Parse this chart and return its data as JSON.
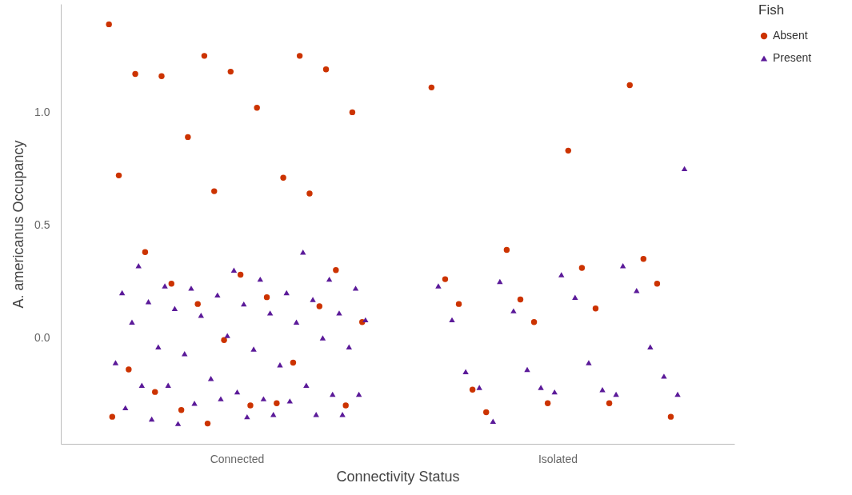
{
  "chart_data": {
    "type": "scatter",
    "xlabel": "Connectivity Status",
    "ylabel": "A. americanus Occupancy",
    "legend_title": "Fish",
    "legend": "right",
    "grid": false,
    "categories": [
      "Connected",
      "Isolated"
    ],
    "ylim": [
      -0.47,
      1.48
    ],
    "yticks": [
      {
        "value": 0,
        "label": "0.0"
      },
      {
        "value": 0.5,
        "label": "0.5"
      },
      {
        "value": 1,
        "label": "1.0"
      }
    ],
    "series": [
      {
        "name": "Absent",
        "color": "#cc3300",
        "marker": "circle",
        "x": [
          "Connected",
          "Connected",
          "Connected",
          "Connected",
          "Connected",
          "Connected",
          "Connected",
          "Connected",
          "Connected",
          "Connected",
          "Connected",
          "Connected",
          "Connected",
          "Connected",
          "Connected",
          "Connected",
          "Connected",
          "Connected",
          "Connected",
          "Connected",
          "Connected",
          "Connected",
          "Connected",
          "Connected",
          "Connected",
          "Connected",
          "Connected",
          "Connected",
          "Connected",
          "Connected",
          "Connected",
          "Connected",
          "Isolated",
          "Isolated",
          "Isolated",
          "Isolated",
          "Isolated",
          "Isolated",
          "Isolated",
          "Isolated",
          "Isolated",
          "Isolated",
          "Isolated",
          "Isolated",
          "Isolated",
          "Isolated",
          "Isolated",
          "Isolated",
          "Isolated"
        ],
        "values": [
          1.39,
          1.25,
          1.25,
          1.17,
          1.18,
          1.19,
          1.16,
          1.02,
          1.0,
          0.89,
          0.71,
          0.72,
          0.65,
          0.64,
          0.38,
          0.28,
          0.3,
          0.24,
          0.18,
          0.07,
          0.15,
          -0.11,
          -0.14,
          -0.01,
          0.14,
          -0.24,
          -0.3,
          -0.3,
          -0.32,
          -0.29,
          -0.35,
          -0.38,
          1.11,
          1.12,
          0.83,
          0.39,
          0.26,
          0.35,
          0.31,
          0.17,
          0.15,
          0.24,
          0.13,
          0.07,
          -0.23,
          -0.35,
          -0.29,
          -0.29,
          -0.33
        ]
      },
      {
        "name": "Present",
        "color": "#5b1a99",
        "marker": "triangle",
        "x": [
          "Connected",
          "Connected",
          "Connected",
          "Connected",
          "Connected",
          "Connected",
          "Connected",
          "Connected",
          "Connected",
          "Connected",
          "Connected",
          "Connected",
          "Connected",
          "Connected",
          "Connected",
          "Connected",
          "Connected",
          "Connected",
          "Connected",
          "Connected",
          "Connected",
          "Connected",
          "Connected",
          "Connected",
          "Connected",
          "Connected",
          "Connected",
          "Connected",
          "Connected",
          "Connected",
          "Connected",
          "Connected",
          "Connected",
          "Connected",
          "Connected",
          "Connected",
          "Connected",
          "Connected",
          "Connected",
          "Connected",
          "Connected",
          "Connected",
          "Connected",
          "Connected",
          "Connected",
          "Connected",
          "Connected",
          "Isolated",
          "Isolated",
          "Isolated",
          "Isolated",
          "Isolated",
          "Isolated",
          "Isolated",
          "Isolated",
          "Isolated",
          "Isolated",
          "Isolated",
          "Isolated",
          "Isolated",
          "Isolated",
          "Isolated",
          "Isolated",
          "Isolated",
          "Isolated",
          "Isolated",
          "Isolated",
          "Isolated"
        ],
        "values": [
          0.38,
          0.32,
          0.3,
          0.26,
          0.23,
          0.26,
          0.22,
          0.22,
          0.2,
          0.2,
          0.19,
          0.17,
          0.16,
          0.15,
          0.11,
          0.13,
          0.11,
          0.08,
          0.1,
          0.07,
          0.07,
          0.01,
          0.0,
          -0.04,
          -0.05,
          -0.04,
          -0.07,
          -0.12,
          -0.11,
          -0.18,
          -0.21,
          -0.21,
          -0.24,
          -0.25,
          -0.21,
          -0.27,
          -0.25,
          -0.29,
          -0.28,
          -0.31,
          -0.27,
          -0.34,
          -0.36,
          -0.35,
          -0.34,
          -0.38,
          -0.34,
          0.75,
          0.32,
          0.28,
          0.25,
          0.23,
          0.21,
          0.18,
          0.12,
          0.08,
          -0.04,
          -0.11,
          -0.14,
          -0.15,
          -0.17,
          -0.23,
          -0.22,
          -0.22,
          -0.25,
          -0.25,
          -0.24,
          -0.37
        ]
      }
    ]
  }
}
